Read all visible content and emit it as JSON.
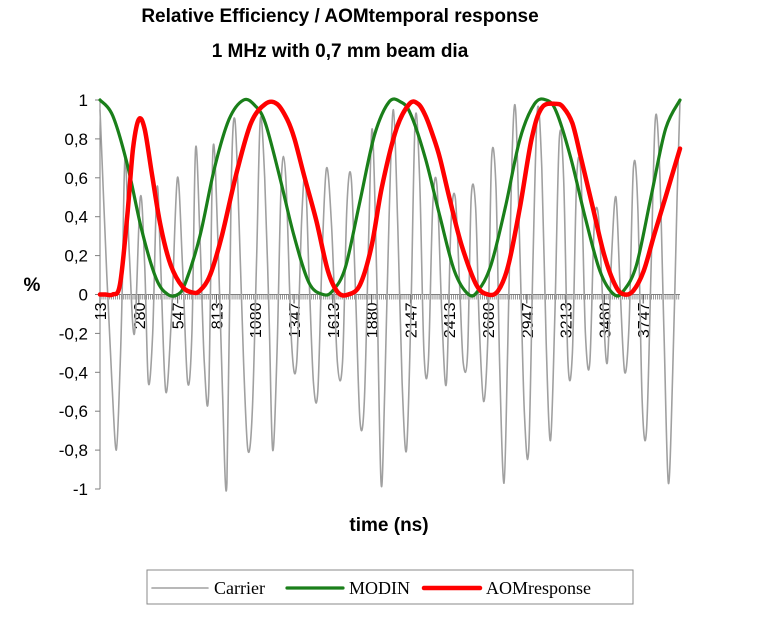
{
  "chart_data": {
    "type": "line",
    "title": "Relative Efficiency / AOMtemporal response",
    "subtitle": "1 MHz with 0,7 mm beam dia",
    "xlabel": "time (ns)",
    "ylabel": "%",
    "ylim": [
      -1,
      1
    ],
    "xlim": [
      13,
      4000
    ],
    "ytick_values": [
      -1,
      -0.8,
      -0.6,
      -0.4,
      -0.2,
      0,
      0.2,
      0.4,
      0.6,
      0.8,
      1
    ],
    "ytick_labels": [
      "-1",
      "-0,8",
      "-0,6",
      "-0,4",
      "-0,2",
      "0",
      "0,2",
      "0,4",
      "0,6",
      "0,8",
      "1"
    ],
    "xtick_values": [
      13,
      280,
      547,
      813,
      1080,
      1347,
      1613,
      1880,
      2147,
      2413,
      2680,
      2947,
      3213,
      3480,
      3747
    ],
    "xtick_labels": [
      "13",
      "280",
      "547",
      "813",
      "1080",
      "1347",
      "1613",
      "1880",
      "2147",
      "2413",
      "2680",
      "2947",
      "3213",
      "3480",
      "3747"
    ],
    "legend_position": "bottom",
    "series": [
      {
        "name": "Carrier",
        "color": "#a0a0a0",
        "x": [
          13,
          60,
          95,
          125,
          150,
          165,
          185,
          215,
          250,
          290,
          320,
          345,
          375,
          405,
          430,
          465,
          505,
          545,
          580,
          615,
          645,
          670,
          700,
          730,
          760,
          790,
          825,
          855,
          885,
          915,
          940,
          970,
          1000,
          1030,
          1060,
          1090,
          1115,
          1145,
          1175,
          1200,
          1230,
          1260,
          1290,
          1330,
          1365,
          1400,
          1425,
          1450,
          1480,
          1510,
          1540,
          1570,
          1605,
          1645,
          1680,
          1710,
          1740,
          1770,
          1800,
          1830,
          1860,
          1885,
          1915,
          1945,
          1970,
          2000,
          2030,
          2060,
          2090,
          2120,
          2150,
          2180,
          2210,
          2240,
          2270,
          2300,
          2330,
          2365,
          2395,
          2425,
          2455,
          2485,
          2510,
          2540,
          2565,
          2595,
          2620,
          2650,
          2680,
          2705,
          2735,
          2760,
          2790,
          2815,
          2845,
          2870,
          2900,
          2930,
          2960,
          2990,
          3020,
          3050,
          3080,
          3110,
          3140,
          3170,
          3200,
          3230,
          3260,
          3290,
          3320,
          3350,
          3380,
          3410,
          3440,
          3470,
          3500,
          3530,
          3560,
          3590,
          3620,
          3650,
          3680,
          3710,
          3740,
          3770,
          3800,
          3830,
          3860,
          3890,
          3920,
          3950,
          3980,
          4000
        ],
        "y": [
          0.95,
          0.1,
          -0.45,
          -0.8,
          -0.4,
          0.0,
          0.7,
          0.2,
          -0.2,
          0.5,
          0.15,
          -0.45,
          -0.2,
          0.55,
          0.15,
          -0.5,
          -0.1,
          0.6,
          0.15,
          -0.45,
          -0.2,
          0.75,
          0.3,
          -0.35,
          -0.5,
          0.75,
          0.25,
          -0.5,
          -0.97,
          0.55,
          0.9,
          0.35,
          -0.35,
          -0.8,
          -0.6,
          0.2,
          0.9,
          0.6,
          -0.1,
          -0.8,
          -0.3,
          0.6,
          0.6,
          -0.25,
          -0.35,
          0.4,
          0.6,
          0.1,
          -0.45,
          -0.5,
          0.2,
          0.65,
          0.35,
          -0.35,
          -0.35,
          0.45,
          0.6,
          0.0,
          -0.65,
          -0.55,
          0.3,
          0.85,
          0.1,
          -0.97,
          -0.5,
          0.4,
          0.95,
          0.35,
          -0.45,
          -0.8,
          -0.1,
          0.9,
          0.6,
          -0.3,
          -0.35,
          0.45,
          0.55,
          -0.15,
          -0.45,
          0.35,
          0.5,
          0.05,
          -0.35,
          -0.3,
          0.5,
          0.45,
          -0.15,
          -0.55,
          -0.2,
          0.7,
          0.55,
          -0.35,
          -0.97,
          -0.3,
          0.7,
          0.95,
          0.2,
          -0.6,
          -0.8,
          0.2,
          0.95,
          0.65,
          -0.25,
          -0.75,
          -0.1,
          0.8,
          0.6,
          -0.35,
          -0.3,
          0.6,
          0.6,
          -0.2,
          -0.35,
          0.35,
          0.4,
          -0.05,
          -0.35,
          0.2,
          0.5,
          0.0,
          -0.4,
          -0.15,
          0.65,
          0.45,
          -0.55,
          -0.7,
          0.1,
          0.9,
          0.65,
          -0.2,
          -0.97,
          -0.4,
          0.5,
          1.0
        ]
      },
      {
        "name": "MODIN",
        "color": "#1a7f1a",
        "x": [
          13,
          100,
          200,
          300,
          400,
          480,
          547,
          600,
          700,
          800,
          900,
          1000,
          1080,
          1150,
          1250,
          1347,
          1450,
          1547,
          1613,
          1700,
          1800,
          1900,
          2000,
          2080,
          2147,
          2250,
          2350,
          2450,
          2547,
          2613,
          2700,
          2800,
          2900,
          3000,
          3080,
          3150,
          3250,
          3347,
          3450,
          3547,
          3613,
          3700,
          3800,
          3900,
          4000
        ],
        "y": [
          1.0,
          0.92,
          0.67,
          0.33,
          0.08,
          0.0,
          0.0,
          0.06,
          0.3,
          0.65,
          0.9,
          1.0,
          0.97,
          0.88,
          0.6,
          0.3,
          0.06,
          0.0,
          0.02,
          0.14,
          0.48,
          0.82,
          0.99,
          0.99,
          0.93,
          0.7,
          0.4,
          0.12,
          0.0,
          0.02,
          0.15,
          0.45,
          0.8,
          0.98,
          1.0,
          0.94,
          0.7,
          0.4,
          0.12,
          0.0,
          0.02,
          0.15,
          0.5,
          0.85,
          1.0
        ]
      },
      {
        "name": "AOMresponse",
        "color": "#ff0000",
        "x": [
          13,
          50,
          100,
          150,
          200,
          240,
          280,
          320,
          370,
          430,
          500,
          580,
          650,
          700,
          770,
          850,
          950,
          1050,
          1150,
          1230,
          1300,
          1350,
          1420,
          1500,
          1580,
          1650,
          1720,
          1800,
          1880,
          1950,
          2050,
          2140,
          2200,
          2250,
          2300,
          2350,
          2420,
          2500,
          2600,
          2680,
          2750,
          2820,
          2900,
          2980,
          3050,
          3150,
          3200,
          3260,
          3320,
          3400,
          3480,
          3560,
          3620,
          3680,
          3750,
          3820,
          3900,
          4000
        ],
        "y": [
          0.0,
          0.0,
          0.0,
          0.05,
          0.4,
          0.75,
          0.9,
          0.85,
          0.62,
          0.35,
          0.15,
          0.04,
          0.01,
          0.02,
          0.1,
          0.3,
          0.62,
          0.88,
          0.98,
          0.98,
          0.9,
          0.8,
          0.6,
          0.38,
          0.12,
          0.01,
          0.0,
          0.05,
          0.25,
          0.55,
          0.85,
          0.98,
          0.98,
          0.92,
          0.82,
          0.7,
          0.48,
          0.25,
          0.05,
          0.0,
          0.02,
          0.15,
          0.45,
          0.8,
          0.96,
          0.98,
          0.96,
          0.88,
          0.7,
          0.45,
          0.2,
          0.04,
          0.0,
          0.02,
          0.12,
          0.3,
          0.5,
          0.75
        ]
      }
    ]
  }
}
